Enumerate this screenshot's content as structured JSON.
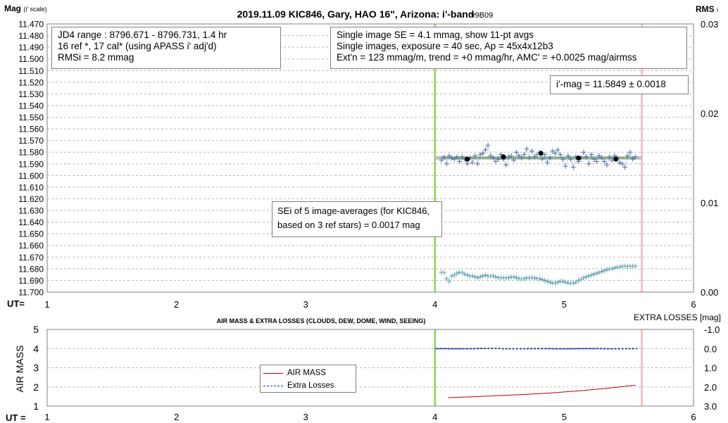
{
  "chart_data": [
    {
      "type": "scatter",
      "title": "2019.11.09 KIC846, Gary, HAO 16\", Arizona: i'-band",
      "version": "v9B09",
      "ylabel": "Mag",
      "ylabel_sub": "(i' scale)",
      "y2label": "RMS",
      "y2label_sub": "i",
      "xlabel": "UT=",
      "xlim": [
        1,
        6
      ],
      "ylim": [
        11.47,
        11.7
      ],
      "y_inverted": true,
      "y2lim": [
        0.0,
        0.03
      ],
      "x_ticks": [
        "1",
        "2",
        "3",
        "4",
        "5",
        "6"
      ],
      "y_ticks": [
        "11.470",
        "11.480",
        "11.490",
        "11.500",
        "11.510",
        "11.520",
        "11.530",
        "11.540",
        "11.550",
        "11.560",
        "11.570",
        "11.580",
        "11.590",
        "11.600",
        "11.610",
        "11.620",
        "11.630",
        "11.640",
        "11.650",
        "11.660",
        "11.670",
        "11.680",
        "11.690",
        "11.700"
      ],
      "y2_ticks": [
        "0.03",
        "0.02",
        "0.01",
        "0.00"
      ],
      "grid": true,
      "annotations": {
        "info_left": [
          "JD4 range : 8796.671 - 8796.731, 1.4  hr",
          "16 ref *, 17 cal* (using APASS i' adj'd)",
          "RMSi = 8.2 mmag"
        ],
        "info_right": [
          "Single image SE = 4.1 mmag, show 11-pt avgs",
          "Single images, exposure = 40 sec, Ap = 45x4x12b3",
          "Ext'n = 123 mmag/m, trend = +0 mmag/hr, AMC' = +0.0025 mag/airmss"
        ],
        "mean_mag": "i'-mag = 11.5849 ± 0.0018",
        "sei": [
          "SEi of 5 image-averages (for KIC846,",
          "based on 3 ref stars) = 0.0017 mag"
        ]
      },
      "vertical_markers": [
        {
          "x": 4.0,
          "color": "#92d050"
        },
        {
          "x": 5.6,
          "color": "#f4b8b8"
        }
      ],
      "mean_line": {
        "y": 11.5849,
        "x": [
          4.0,
          5.6
        ],
        "color": "#c0c0c0"
      },
      "trend_line": {
        "y": 11.5849,
        "x": [
          4.05,
          5.55
        ],
        "color": "#70b070"
      },
      "series": [
        {
          "marker": "plus",
          "color": "#4f6fa8",
          "x": [
            4.05,
            4.07,
            4.09,
            4.11,
            4.13,
            4.15,
            4.17,
            4.19,
            4.21,
            4.23,
            4.25,
            4.27,
            4.29,
            4.31,
            4.33,
            4.35,
            4.37,
            4.39,
            4.41,
            4.43,
            4.45,
            4.47,
            4.49,
            4.51,
            4.53,
            4.55,
            4.57,
            4.59,
            4.61,
            4.63,
            4.65,
            4.67,
            4.69,
            4.71,
            4.73,
            4.75,
            4.77,
            4.79,
            4.81,
            4.83,
            4.85,
            4.87,
            4.89,
            4.91,
            4.93,
            4.95,
            4.97,
            4.99,
            5.01,
            5.03,
            5.05,
            5.07,
            5.09,
            5.11,
            5.13,
            5.15,
            5.17,
            5.19,
            5.21,
            5.23,
            5.25,
            5.27,
            5.29,
            5.31,
            5.33,
            5.35,
            5.37,
            5.39,
            5.41,
            5.43,
            5.45,
            5.47,
            5.49,
            5.51,
            5.53,
            5.55
          ],
          "values": [
            11.587,
            11.584,
            11.59,
            11.583,
            11.585,
            11.586,
            11.584,
            11.588,
            11.584,
            11.586,
            11.59,
            11.585,
            11.589,
            11.583,
            11.59,
            11.582,
            11.581,
            11.578,
            11.574,
            11.583,
            11.585,
            11.588,
            11.586,
            11.582,
            11.586,
            11.591,
            11.584,
            11.583,
            11.587,
            11.58,
            11.583,
            11.585,
            11.582,
            11.577,
            11.585,
            11.579,
            11.584,
            11.582,
            11.58,
            11.586,
            11.582,
            11.589,
            11.585,
            11.579,
            11.581,
            11.578,
            11.582,
            11.586,
            11.592,
            11.583,
            11.586,
            11.593,
            11.584,
            11.588,
            11.585,
            11.58,
            11.584,
            11.59,
            11.582,
            11.586,
            11.588,
            11.583,
            11.585,
            11.588,
            11.591,
            11.584,
            11.587,
            11.583,
            11.585,
            11.589,
            11.59,
            11.593,
            11.583,
            11.58,
            11.586,
            11.584
          ]
        },
        {
          "marker": "circle",
          "color": "#000000",
          "x": [
            4.25,
            4.53,
            4.82,
            5.11,
            5.4
          ],
          "values": [
            11.586,
            11.584,
            11.581,
            11.585,
            11.586
          ]
        },
        {
          "marker": "plus",
          "color": "#5aa0b0",
          "axis": "y2",
          "x": [
            4.05,
            4.07,
            4.09,
            4.11,
            4.13,
            4.15,
            4.17,
            4.19,
            4.21,
            4.23,
            4.25,
            4.27,
            4.29,
            4.31,
            4.33,
            4.35,
            4.37,
            4.39,
            4.41,
            4.43,
            4.45,
            4.47,
            4.49,
            4.51,
            4.53,
            4.55,
            4.57,
            4.59,
            4.61,
            4.63,
            4.65,
            4.67,
            4.69,
            4.71,
            4.73,
            4.75,
            4.77,
            4.79,
            4.81,
            4.83,
            4.85,
            4.87,
            4.89,
            4.91,
            4.93,
            4.95,
            4.97,
            4.99,
            5.01,
            5.03,
            5.05,
            5.07,
            5.09,
            5.11,
            5.13,
            5.15,
            5.17,
            5.19,
            5.21,
            5.23,
            5.25,
            5.27,
            5.29,
            5.31,
            5.33,
            5.35,
            5.37,
            5.39,
            5.41,
            5.43,
            5.45,
            5.47,
            5.49,
            5.51,
            5.53,
            5.55
          ],
          "values": [
            0.0022,
            0.0022,
            0.0015,
            0.0012,
            0.0018,
            0.0019,
            0.0021,
            0.0022,
            0.0022,
            0.002,
            0.0019,
            0.0018,
            0.0018,
            0.0017,
            0.0016,
            0.0017,
            0.0018,
            0.0019,
            0.0018,
            0.0018,
            0.0018,
            0.0017,
            0.0016,
            0.0016,
            0.0016,
            0.0016,
            0.0016,
            0.0017,
            0.0017,
            0.0016,
            0.0015,
            0.0015,
            0.0015,
            0.0016,
            0.0016,
            0.0016,
            0.0016,
            0.0015,
            0.0015,
            0.0014,
            0.0013,
            0.0012,
            0.0011,
            0.001,
            0.001,
            0.0011,
            0.0012,
            0.0012,
            0.0011,
            0.001,
            0.001,
            0.001,
            0.0011,
            0.0013,
            0.0014,
            0.0016,
            0.0017,
            0.0018,
            0.0019,
            0.002,
            0.0021,
            0.0022,
            0.0023,
            0.0024,
            0.0025,
            0.0026,
            0.0026,
            0.0027,
            0.0028,
            0.0028,
            0.0029,
            0.0029,
            0.0029,
            0.0029,
            0.0029,
            0.0029
          ]
        }
      ]
    },
    {
      "type": "line",
      "title": "AIR MASS & EXTRA LOSSES (CLOUDS, DEW, DOME, WIND, SEEING)",
      "ylabel": "AIR MASS",
      "y2label": "EXTRA LOSSES [mag]",
      "xlabel": "UT =",
      "xlim": [
        1,
        6
      ],
      "ylim": [
        1,
        5
      ],
      "y2lim": [
        -1.0,
        3.0
      ],
      "y2_inverted": true,
      "x_ticks": [
        "1",
        "2",
        "3",
        "4",
        "5",
        "6"
      ],
      "y_ticks": [
        "1",
        "2",
        "3",
        "4",
        "5"
      ],
      "y2_ticks": [
        "-1.0",
        "0.0",
        "1.0",
        "2.0",
        "3.0"
      ],
      "grid": true,
      "legend_position": "center-left",
      "vertical_markers": [
        {
          "x": 4.0,
          "color": "#92d050"
        },
        {
          "x": 5.6,
          "color": "#f4b8b8"
        }
      ],
      "series": [
        {
          "name": "AIR MASS",
          "color": "#c00000",
          "x": [
            4.1,
            4.3,
            4.5,
            4.7,
            4.9,
            5.1,
            5.3,
            5.55
          ],
          "values": [
            1.44,
            1.49,
            1.55,
            1.61,
            1.69,
            1.79,
            1.91,
            2.09
          ]
        },
        {
          "name": "Extra Losses",
          "color": "#1f3f8f",
          "axis": "y2",
          "x": [
            4.0,
            4.2,
            4.4,
            4.6,
            4.8,
            5.0,
            5.2,
            5.4,
            5.55
          ],
          "values": [
            0.0,
            0.01,
            -0.01,
            0.01,
            0.0,
            0.01,
            0.0,
            0.01,
            0.0
          ]
        }
      ]
    }
  ]
}
